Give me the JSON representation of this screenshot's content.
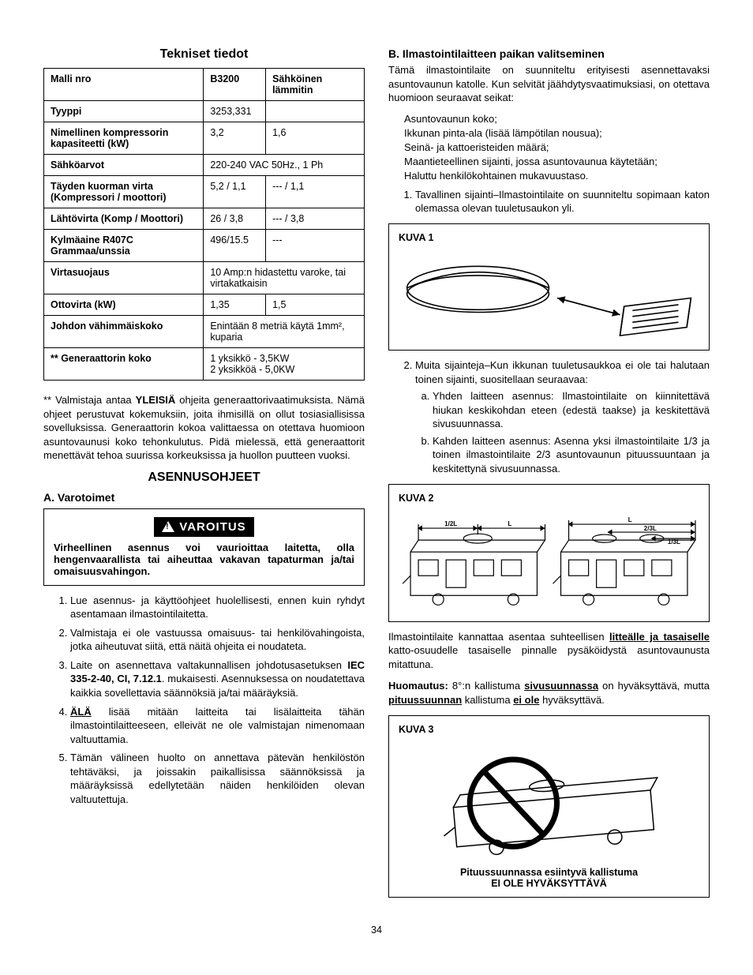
{
  "left": {
    "title": "Tekniset tiedot",
    "table": {
      "rows": [
        {
          "label": "Malli nro",
          "c1": "B3200",
          "c2": "Sähköinen lämmitin"
        },
        {
          "label": "Tyyppi",
          "c1": "3253,331",
          "c2": ""
        },
        {
          "label": "Nimellinen kompressorin kapasiteetti (kW)",
          "c1": "3,2",
          "c2": "1,6"
        },
        {
          "label": "Sähköarvot",
          "span": "220-240 VAC 50Hz., 1 Ph"
        },
        {
          "label": "Täyden kuorman virta (Kompressori / moottori)",
          "c1": "5,2 / 1,1",
          "c2": "--- / 1,1"
        },
        {
          "label": "Lähtövirta (Komp / Moottori)",
          "c1": "26 / 3,8",
          "c2": "--- / 3,8"
        },
        {
          "label": "Kylmäaine R407C Grammaa/unssia",
          "c1": "496/15.5",
          "c2": "---"
        },
        {
          "label": "Virtasuojaus",
          "span": "10 Amp:n hidastettu varoke, tai virtakatkaisin"
        },
        {
          "label": "Ottovirta  (kW)",
          "c1": "1,35",
          "c2": "1,5"
        },
        {
          "label": "Johdon vähimmäiskoko",
          "span": "Enintään 8 metriä käytä 1mm², kuparia"
        },
        {
          "label": "** Generaattorin koko",
          "span": "1 yksikkö - 3,5KW\n2 yksikköä - 5,0KW"
        }
      ]
    },
    "generator_note_pre": "** Valmistaja antaa ",
    "generator_note_bold": "YLEISIÄ",
    "generator_note_post": " ohjeita generaattorivaatimuksista. Nämä ohjeet perustuvat kokemuksiin, joita ihmisillä on ollut tosiasiallisissa sovelluksissa. Generaattorin kokoa valittaessa on otettava huomioon asuntovaunusi koko tehonkulutus. Pidä mielessä, että generaattorit menettävät tehoa suurissa korkeuksissa ja huollon puutteen vuoksi.",
    "install_heading": "ASENNUSOHJEET",
    "sectionA": "A.  Varotoimet",
    "warning_label": "VAROITUS",
    "warning_text": "Virheellinen asennus voi vaurioittaa laitetta, olla hengenvaarallista tai aiheuttaa vakavan tapaturman ja/tai omaisuusvahingon.",
    "listA": {
      "i1": "Lue asennus- ja käyttöohjeet huolellisesti, ennen kuin ryhdyt asentamaan ilmastointilaitetta.",
      "i2": "Valmistaja ei ole vastuussa omaisuus- tai henkilövahingoista, jotka aiheutuvat siitä, että näitä ohjeita ei noudateta.",
      "i3_a": "Laite on asennettava valtakunnallisen johdotusasetuksen ",
      "i3_b": "IEC 335-2-40, CI, 7.12.1",
      "i3_c": ". mukaisesti.  Asennuksessa on noudatettava kaikkia sovellettavia säännöksiä ja/tai määräyksiä.",
      "i4_a": "ÄLÄ",
      "i4_b": " lisää mitään laitteita tai lisälaitteita tähän ilmastointilaitteeseen, elleivät ne ole valmistajan nimenomaan valtuuttamia.",
      "i5": "Tämän välineen huolto on annettava pätevän henkilöstön tehtäväksi, ja joissakin paikallisissa säännöksissä ja määräyksissä edellytetään näiden henkilöiden olevan valtuutettuja."
    }
  },
  "right": {
    "sectionB": "B.  Ilmastointilaitteen paikan valitseminen",
    "intro": "Tämä ilmastointilaite on suunniteltu erityisesti asennettavaksi asuntovaunun katolle. Kun selvität jäähdytysvaatimuksiasi, on otettava huomioon seuraavat seikat:",
    "bullets": {
      "b1": "Asuntovaunun koko;",
      "b2": "Ikkunan pinta-ala (lisää lämpötilan nousua);",
      "b3": "Seinä- ja kattoeristeiden määrä;",
      "b4": "Maantieteellinen sijainti, jossa asuntovaunua käytetään;",
      "b5": "Haluttu henkilökohtainen mukavuustaso."
    },
    "item1": "Tavallinen sijainti–Ilmastointilaite on suunniteltu sopimaan katon olemassa olevan tuuletusaukon yli.",
    "fig1": "KUVA 1",
    "item2_lead": "Muita sijainteja–Kun ikkunan tuuletusaukkoa ei ole tai halutaan toinen sijainti, suositellaan seuraavaa:",
    "item2a": "Yhden laitteen asennus: Ilmastointilaite on kiinnitettävä hiukan keskikohdan eteen (edestä taakse) ja keskitettävä sivusuunnassa.",
    "item2b": "Kahden laitteen asennus: Asenna yksi ilmastointilaite 1/3 ja toinen ilmastointilaite 2/3 asuntovaunun pituussuuntaan ja keskitettynä sivusuunnassa.",
    "fig2": "KUVA 2",
    "fig2_labels": {
      "half": "1/2L",
      "L": "L",
      "twothird": "2/3L",
      "onethird": "1/3L"
    },
    "para_after_fig2_a": "Ilmastointilaite kannattaa asentaa suhteellisen ",
    "para_after_fig2_u1": "litteälle ja tasaiselle",
    "para_after_fig2_b": " katto-osuudelle tasaiselle pinnalle pysäköidystä asuntovaunusta mitattuna.",
    "note_label": "Huomautus:",
    "note_a": " 8°:n kallistuma ",
    "note_u1": "sivusuunnassa",
    "note_b": " on hyväksyttävä, mutta ",
    "note_u2": "pituussuunnan",
    "note_c": " kallistuma ",
    "note_u3": "ei ole",
    "note_d": " hyväksyttävä.",
    "fig3": "KUVA 3",
    "fig3_cap1": "Pituussuunnassa esiintyvä kallistuma",
    "fig3_cap2": "EI OLE HYVÄKSYTTÄVÄ"
  },
  "page": "34"
}
